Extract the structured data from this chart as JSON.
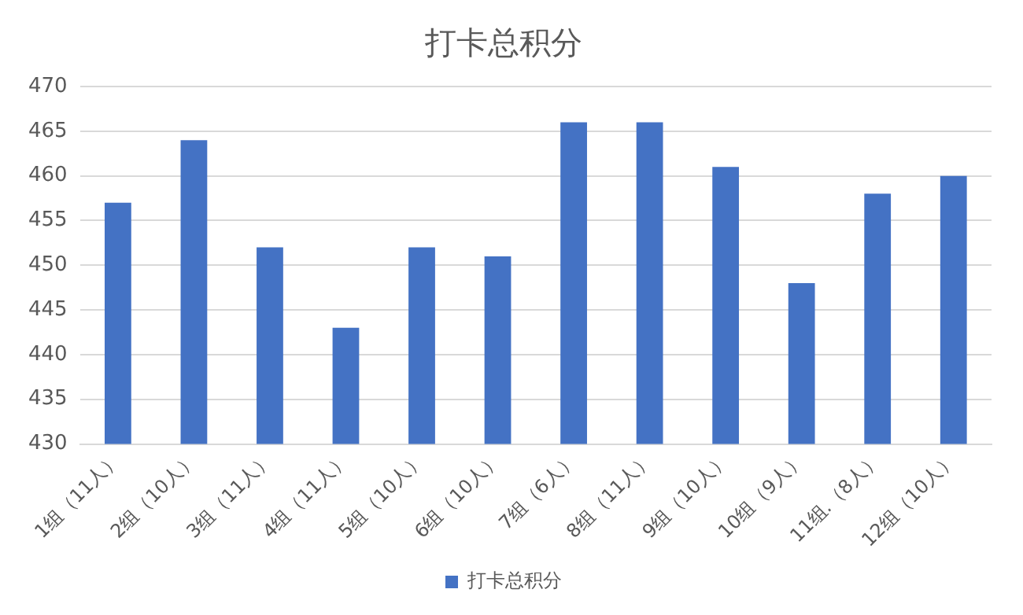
{
  "chart_data": {
    "type": "bar",
    "title": "打卡总积分",
    "categories": [
      "1组（11人）",
      "2组（10人）",
      "3组（11人）",
      "4组（11人）",
      "5组（10人）",
      "6组（10人）",
      "7组（6人）",
      "8组（11人）",
      "9组（10人）",
      "10组（9人）",
      "11组.（8人）",
      "12组（10人）"
    ],
    "series": [
      {
        "name": "打卡总积分",
        "color": "#4472c4",
        "values": [
          457,
          464,
          452,
          443,
          452,
          451,
          466,
          466,
          461,
          448,
          458,
          460
        ]
      }
    ],
    "ylim": [
      430,
      470
    ],
    "yticks": [
      430,
      435,
      440,
      445,
      450,
      455,
      460,
      465,
      470
    ],
    "grid": "y",
    "legend": "bottom"
  }
}
